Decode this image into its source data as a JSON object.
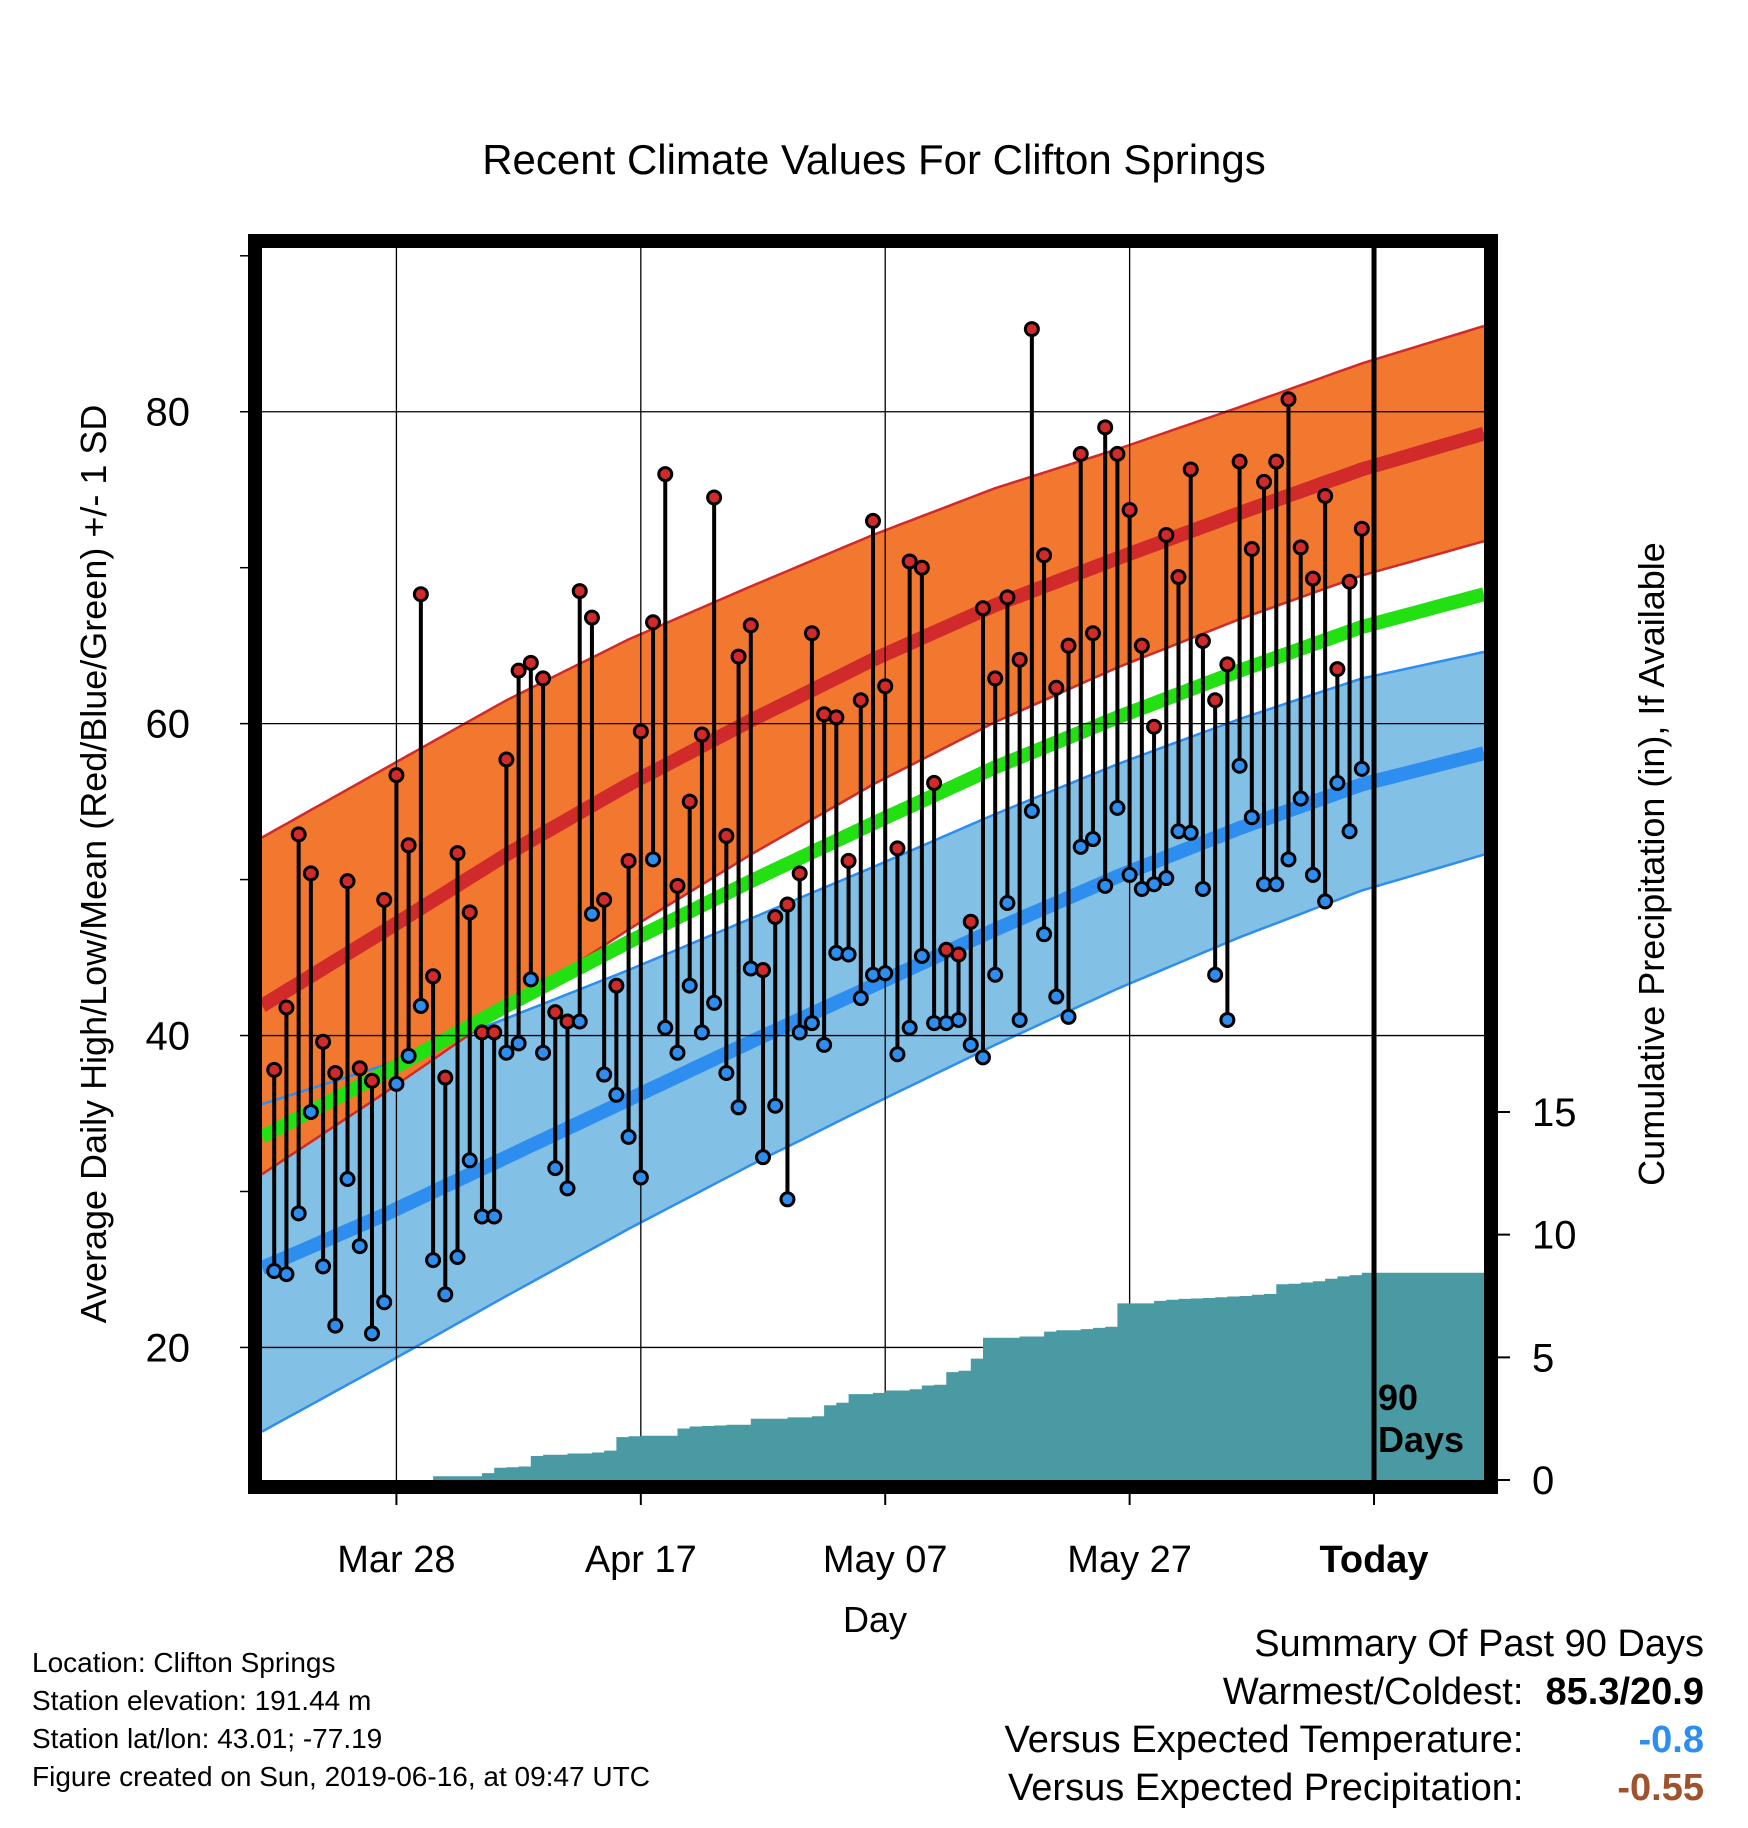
{
  "chart_data": {
    "type": "line",
    "title": "Recent Climate Values For Clifton Springs",
    "xlabel": "Day",
    "ylabel": "Average Daily High/Low/Mean (Red/Blue/Green) +/- 1 SD",
    "y2label": "Cumulative Precipitation (in), If Available",
    "x_tick_labels": [
      "Mar 28",
      "Apr 17",
      "May 07",
      "May 27",
      "Today"
    ],
    "x_tick_days": [
      10,
      30,
      50,
      70,
      90
    ],
    "xlim": [
      -1,
      99
    ],
    "ylim": [
      11.5,
      90.5
    ],
    "y_ticks": [
      20,
      40,
      60,
      80
    ],
    "y2_ticks": [
      0,
      5,
      10,
      15
    ],
    "y2lim": [
      0,
      18.6
    ],
    "grid": true,
    "today_marker": "90\nDays",
    "colors": {
      "high": "#d12a2a",
      "high_band": "#f27830",
      "low": "#2e8ef0",
      "low_band": "#82c0e6",
      "mean": "#22e012",
      "precip": "#4a9aa3"
    },
    "normals": {
      "x": [
        -1,
        9,
        19,
        29,
        39,
        49,
        59,
        69,
        79,
        89,
        99
      ],
      "high_mean": [
        41.9,
        46.7,
        51.6,
        56.1,
        60.2,
        64.1,
        67.6,
        70.6,
        73.5,
        76.3,
        78.6
      ],
      "high_sd": [
        10.8,
        10.4,
        9.9,
        9.3,
        8.6,
        8.0,
        7.5,
        7.0,
        6.8,
        6.8,
        6.9
      ],
      "low_mean": [
        25.1,
        28.5,
        32.2,
        35.9,
        39.6,
        43.2,
        46.8,
        50.2,
        53.3,
        56.1,
        58.1
      ],
      "low_sd": [
        10.5,
        9.6,
        8.9,
        8.3,
        7.9,
        7.6,
        7.4,
        7.2,
        7.0,
        6.8,
        6.5
      ],
      "mean": [
        33.5,
        37.6,
        41.9,
        46.0,
        49.9,
        53.6,
        57.2,
        60.4,
        63.4,
        66.2,
        68.3
      ]
    },
    "series": [
      {
        "name": "High",
        "x": [
          0,
          1,
          2,
          3,
          4,
          5,
          6,
          7,
          8,
          9,
          10,
          11,
          12,
          13,
          14,
          15,
          16,
          17,
          18,
          19,
          20,
          21,
          22,
          23,
          24,
          25,
          26,
          27,
          28,
          29,
          30,
          31,
          32,
          33,
          34,
          35,
          36,
          37,
          38,
          39,
          40,
          41,
          42,
          43,
          44,
          45,
          46,
          47,
          48,
          49,
          50,
          51,
          52,
          53,
          54,
          55,
          56,
          57,
          58,
          59,
          60,
          61,
          62,
          63,
          64,
          65,
          66,
          67,
          68,
          69,
          70,
          71,
          72,
          73,
          74,
          75,
          76,
          77,
          78,
          79,
          80,
          81,
          82,
          83,
          84,
          85,
          86,
          87,
          88,
          89
        ],
        "values": [
          37.8,
          41.8,
          52.9,
          50.4,
          39.6,
          37.6,
          49.9,
          37.9,
          37.1,
          48.7,
          56.7,
          52.2,
          68.3,
          43.8,
          37.3,
          51.7,
          47.9,
          40.2,
          40.2,
          57.7,
          63.4,
          63.9,
          62.9,
          41.5,
          40.9,
          68.5,
          66.8,
          48.7,
          43.2,
          51.2,
          59.5,
          66.5,
          76.0,
          49.6,
          55.0,
          59.3,
          74.5,
          52.8,
          64.3,
          66.3,
          44.2,
          47.6,
          48.4,
          50.4,
          65.8,
          60.6,
          60.4,
          51.2,
          61.5,
          73.0,
          62.4,
          52.0,
          70.4,
          70.0,
          56.2,
          45.5,
          45.2,
          47.3,
          67.4,
          62.9,
          68.1,
          64.1,
          85.3,
          70.8,
          62.3,
          65.0,
          77.3,
          65.8,
          79.0,
          77.3,
          73.7,
          65.0,
          59.8,
          72.1,
          69.4,
          76.3,
          65.3,
          61.5,
          63.8,
          76.8,
          71.2,
          75.5,
          76.8,
          80.8,
          71.3,
          69.3,
          74.6,
          63.5,
          69.1,
          72.5
        ]
      },
      {
        "name": "Low",
        "x": [
          0,
          1,
          2,
          3,
          4,
          5,
          6,
          7,
          8,
          9,
          10,
          11,
          12,
          13,
          14,
          15,
          16,
          17,
          18,
          19,
          20,
          21,
          22,
          23,
          24,
          25,
          26,
          27,
          28,
          29,
          30,
          31,
          32,
          33,
          34,
          35,
          36,
          37,
          38,
          39,
          40,
          41,
          42,
          43,
          44,
          45,
          46,
          47,
          48,
          49,
          50,
          51,
          52,
          53,
          54,
          55,
          56,
          57,
          58,
          59,
          60,
          61,
          62,
          63,
          64,
          65,
          66,
          67,
          68,
          69,
          70,
          71,
          72,
          73,
          74,
          75,
          76,
          77,
          78,
          79,
          80,
          81,
          82,
          83,
          84,
          85,
          86,
          87,
          88,
          89
        ],
        "values": [
          24.9,
          24.7,
          28.6,
          35.1,
          25.2,
          21.4,
          30.8,
          26.5,
          20.9,
          22.9,
          36.9,
          38.7,
          41.9,
          25.6,
          23.4,
          25.8,
          32.0,
          28.4,
          28.4,
          38.9,
          39.5,
          43.6,
          38.9,
          31.5,
          30.2,
          40.9,
          47.8,
          37.5,
          36.2,
          33.5,
          30.9,
          51.3,
          40.5,
          38.9,
          43.2,
          40.2,
          42.1,
          37.6,
          35.4,
          44.3,
          32.2,
          35.5,
          29.5,
          40.2,
          40.8,
          39.4,
          45.3,
          45.2,
          42.4,
          43.9,
          44.0,
          38.8,
          40.5,
          45.1,
          40.8,
          40.8,
          41.0,
          39.4,
          38.6,
          43.9,
          48.5,
          41.0,
          54.4,
          46.5,
          42.5,
          41.2,
          52.1,
          52.6,
          49.6,
          54.6,
          50.3,
          49.4,
          49.7,
          50.1,
          53.1,
          53.0,
          49.4,
          43.9,
          41.0,
          57.3,
          54.0,
          49.7,
          49.7,
          51.3,
          55.2,
          50.3,
          48.6,
          56.2,
          53.1,
          57.1
        ]
      }
    ],
    "precip": {
      "x": [
        -1,
        12,
        13,
        17,
        18,
        19,
        20,
        21,
        22,
        24,
        26,
        27,
        28,
        29,
        30,
        33,
        34,
        35,
        36,
        37,
        38,
        39,
        40,
        42,
        44,
        45,
        46,
        47,
        49,
        50,
        52,
        53,
        54,
        55,
        56,
        57,
        58,
        61,
        62,
        63,
        64,
        65,
        66,
        67,
        68,
        69,
        72,
        73,
        74,
        75,
        76,
        77,
        78,
        79,
        80,
        81,
        82,
        83,
        84,
        85,
        86,
        87,
        88,
        89,
        99
      ],
      "cum": [
        0,
        0,
        0.15,
        0.28,
        0.5,
        0.52,
        0.55,
        0.98,
        1.03,
        1.08,
        1.12,
        1.2,
        1.75,
        1.78,
        1.8,
        2.1,
        2.18,
        2.2,
        2.22,
        2.25,
        2.25,
        2.5,
        2.5,
        2.55,
        2.6,
        3.05,
        3.15,
        3.5,
        3.55,
        3.65,
        3.7,
        3.85,
        3.88,
        4.4,
        4.45,
        4.95,
        5.8,
        5.85,
        5.85,
        6.05,
        6.1,
        6.1,
        6.15,
        6.2,
        6.25,
        7.2,
        7.3,
        7.35,
        7.38,
        7.4,
        7.42,
        7.45,
        7.48,
        7.5,
        7.55,
        7.58,
        7.98,
        8.0,
        8.05,
        8.1,
        8.2,
        8.3,
        8.35,
        8.45,
        8.45
      ]
    }
  },
  "footer": {
    "location": "Location: Clifton Springs",
    "elevation": "Station elevation: 191.44 m",
    "latlon": "Station lat/lon: 43.01; -77.19",
    "created": "Figure created on Sun, 2019-06-16, at 09:47 UTC"
  },
  "summary": {
    "heading": "Summary Of Past 90 Days",
    "warmest_coldest_label": "Warmest/Coldest:",
    "warmest_coldest_value": "85.3/20.9",
    "temp_label": "Versus Expected Temperature:",
    "temp_value": "-0.8",
    "temp_color": "#2e8ef0",
    "precip_label": "Versus Expected Precipitation:",
    "precip_value": "-0.55",
    "precip_color": "#a0522d"
  }
}
